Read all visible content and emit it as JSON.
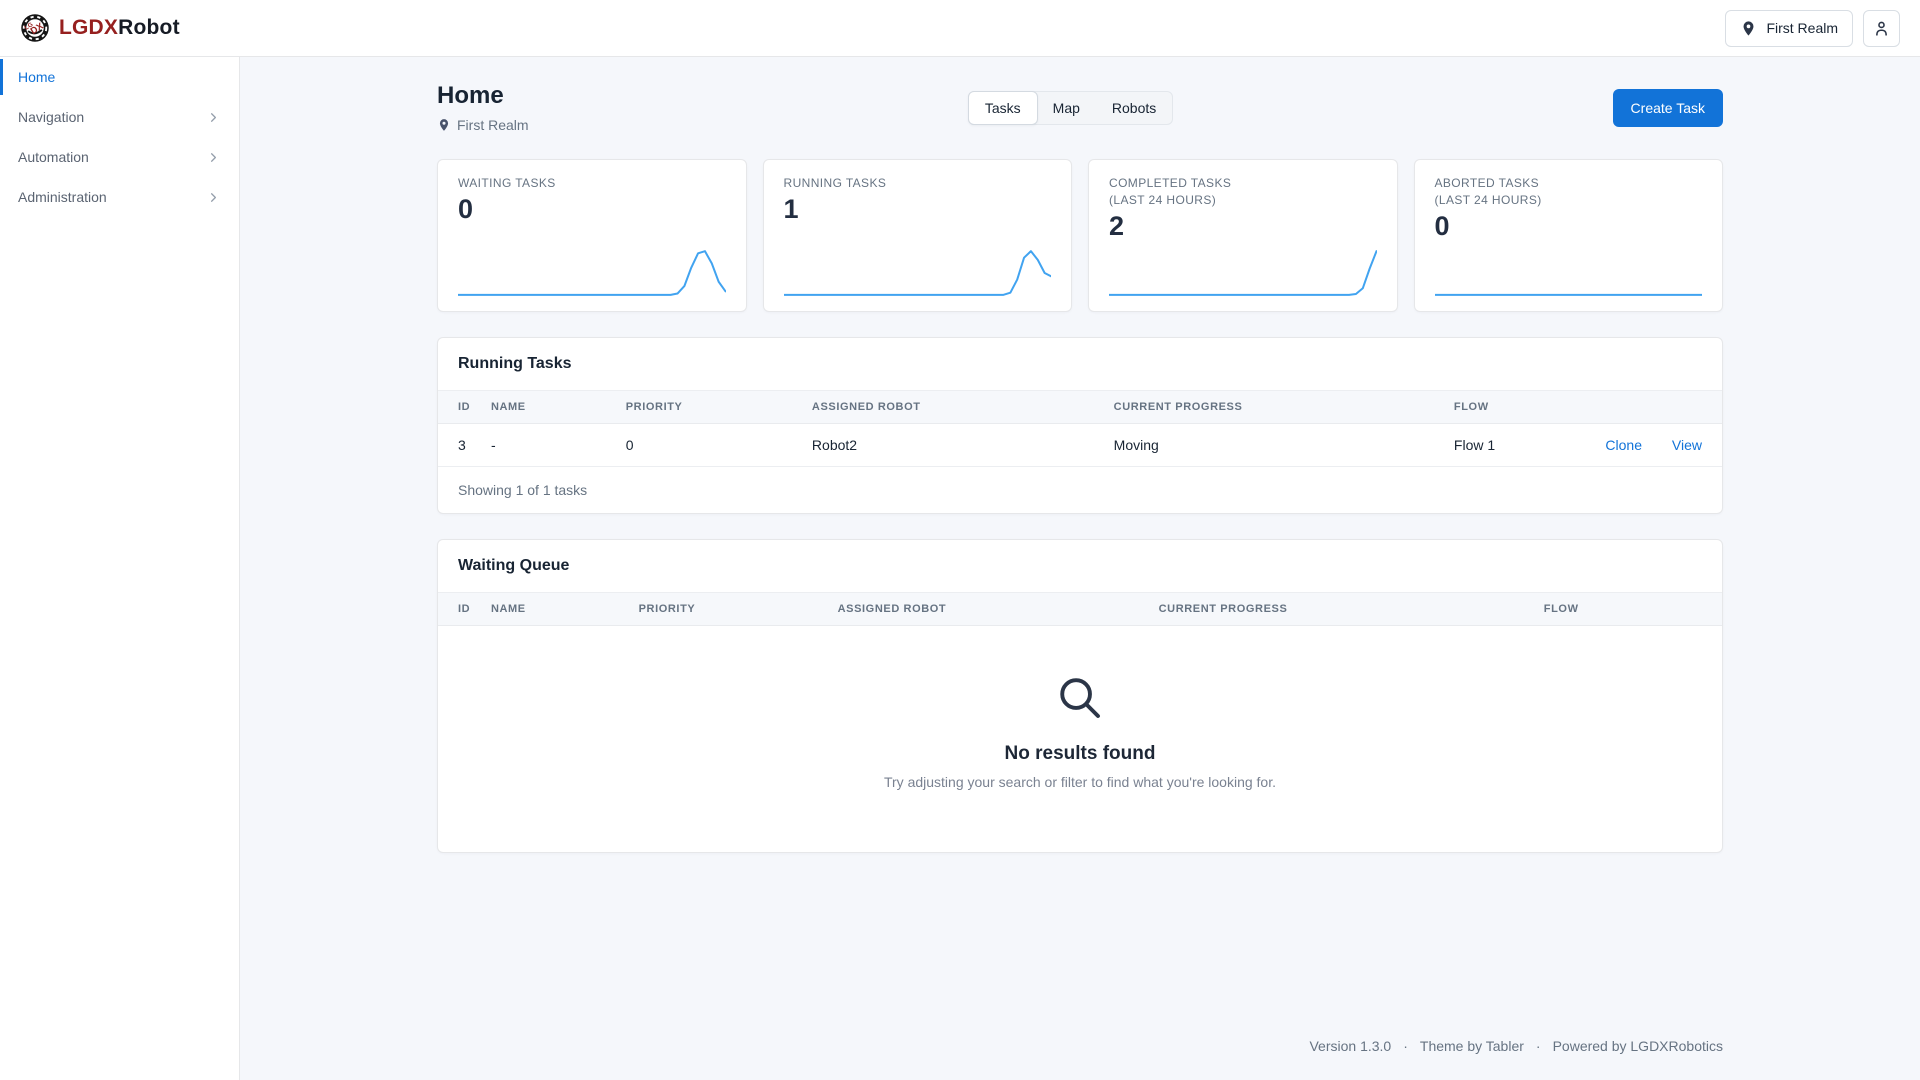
{
  "brand": {
    "name_primary": "LGDX",
    "name_secondary": "Robot"
  },
  "topbar": {
    "realm_button_label": "First Realm"
  },
  "sidebar": {
    "items": [
      {
        "label": "Home",
        "active": true
      },
      {
        "label": "Navigation",
        "active": false
      },
      {
        "label": "Automation",
        "active": false
      },
      {
        "label": "Administration",
        "active": false
      }
    ]
  },
  "page_header": {
    "title": "Home",
    "realm_label": "First Realm",
    "view_tabs": [
      {
        "label": "Tasks",
        "active": true
      },
      {
        "label": "Map",
        "active": false
      },
      {
        "label": "Robots",
        "active": false
      }
    ],
    "create_task_label": "Create Task"
  },
  "stat_cards": [
    {
      "label": "WAITING TASKS",
      "sublabel": "",
      "value": "0",
      "sparkline": [
        0,
        0,
        0,
        0,
        0,
        0,
        0,
        0,
        0,
        0,
        0,
        0,
        0,
        0,
        0,
        0,
        0,
        0,
        0,
        0,
        0,
        0,
        0,
        0,
        0,
        0,
        0,
        0,
        0,
        0,
        0,
        0,
        0.03,
        0.2,
        0.62,
        0.95,
        1.0,
        0.72,
        0.3,
        0.08
      ]
    },
    {
      "label": "RUNNING TASKS",
      "sublabel": "",
      "value": "1",
      "sparkline": [
        0,
        0,
        0,
        0,
        0,
        0,
        0,
        0,
        0,
        0,
        0,
        0,
        0,
        0,
        0,
        0,
        0,
        0,
        0,
        0,
        0,
        0,
        0,
        0,
        0,
        0,
        0,
        0,
        0,
        0,
        0,
        0,
        0,
        0.05,
        0.35,
        0.85,
        1.0,
        0.8,
        0.5,
        0.42
      ]
    },
    {
      "label": "COMPLETED TASKS",
      "sublabel": "(LAST 24 HOURS)",
      "value": "2",
      "sparkline": [
        0,
        0,
        0,
        0,
        0,
        0,
        0,
        0,
        0,
        0,
        0,
        0,
        0,
        0,
        0,
        0,
        0,
        0,
        0,
        0,
        0,
        0,
        0,
        0,
        0,
        0,
        0,
        0,
        0,
        0,
        0,
        0,
        0,
        0,
        0,
        0,
        0.02,
        0.15,
        0.6,
        1.0
      ]
    },
    {
      "label": "ABORTED TASKS",
      "sublabel": "(LAST 24 HOURS)",
      "value": "0",
      "sparkline": [
        0,
        0,
        0,
        0,
        0,
        0,
        0,
        0,
        0,
        0,
        0,
        0,
        0,
        0,
        0,
        0,
        0,
        0,
        0,
        0,
        0,
        0,
        0,
        0,
        0,
        0,
        0,
        0,
        0,
        0,
        0,
        0,
        0,
        0,
        0,
        0,
        0,
        0,
        0,
        0
      ]
    }
  ],
  "running_tasks": {
    "title": "Running Tasks",
    "columns": [
      "ID",
      "NAME",
      "PRIORITY",
      "ASSIGNED ROBOT",
      "CURRENT PROGRESS",
      "FLOW"
    ],
    "rows": [
      {
        "id": "3",
        "name": "-",
        "priority": "0",
        "assigned_robot": "Robot2",
        "current_progress": "Moving",
        "flow": "Flow 1",
        "actions": [
          "Clone",
          "View"
        ]
      }
    ],
    "footer": "Showing 1 of 1 tasks"
  },
  "waiting_queue": {
    "title": "Waiting Queue",
    "columns": [
      "ID",
      "NAME",
      "PRIORITY",
      "ASSIGNED ROBOT",
      "CURRENT PROGRESS",
      "FLOW"
    ],
    "empty_state": {
      "title": "No results found",
      "hint": "Try adjusting your search or filter to find what you're looking for."
    }
  },
  "page_footer": {
    "version": "Version 1.3.0",
    "separator": "·",
    "theme": "Theme by Tabler",
    "powered_by": "Powered by LGDXRobotics"
  },
  "colors": {
    "primary": "#1273d8",
    "sparkline": "#41a3f0",
    "brand_red": "#96201f",
    "text_dark": "#182433",
    "text_muted": "#667382",
    "border": "#e6e7e9",
    "page_bg": "#f5f7fb",
    "table_head_bg": "#f6f8fb"
  }
}
